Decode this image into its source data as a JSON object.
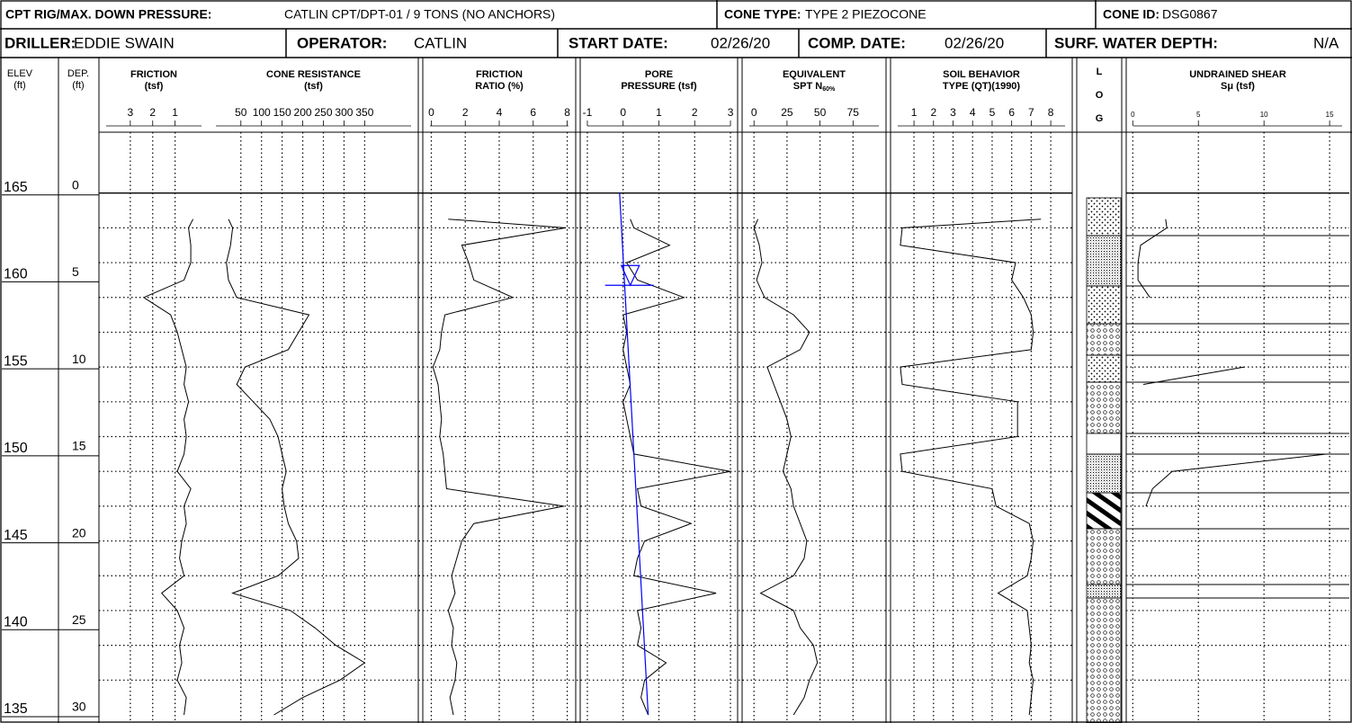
{
  "header": {
    "rig_label": "CPT RIG/MAX. DOWN PRESSURE:",
    "rig_value": "CATLIN CPT/DPT-01 / 9 TONS (NO ANCHORS)",
    "cone_type_label": "CONE TYPE:",
    "cone_type_value": "TYPE 2 PIEZOCONE",
    "cone_id_label": "CONE ID:",
    "cone_id_value": "DSG0867",
    "driller_label": "DRILLER:",
    "driller_value": "EDDIE SWAIN",
    "operator_label": "OPERATOR:",
    "operator_value": "CATLIN",
    "start_label": "START DATE:",
    "start_value": "02/26/20",
    "comp_label": "COMP. DATE:",
    "comp_value": "02/26/20",
    "water_label": "SURF. WATER DEPTH:",
    "water_value": "N/A"
  },
  "depth_axis": {
    "elev_title": "ELEV",
    "elev_unit": "(ft)",
    "depth_title": "DEP.",
    "depth_unit": "(ft)",
    "ylim": [
      -3.5,
      30
    ],
    "ticks": [
      0,
      5,
      10,
      15,
      20,
      25,
      30
    ],
    "elevations": [
      165,
      160,
      155,
      150,
      145,
      140,
      135
    ],
    "grid": [
      2,
      4,
      6,
      8,
      10,
      12,
      14,
      16,
      18,
      20,
      22,
      24,
      26,
      28
    ],
    "log_title": [
      "L",
      "O",
      "G"
    ]
  },
  "chart_data": [
    {
      "type": "line",
      "title": [
        "FRICTION",
        "(tsf)"
      ],
      "color": "#000000",
      "xlim": [
        4.4,
        -0.5
      ],
      "xticks": [
        3,
        2,
        1
      ],
      "grid": true,
      "depth": [
        1.5,
        2,
        3,
        4,
        5,
        6,
        7,
        8,
        9,
        10,
        11,
        12,
        13,
        14,
        15,
        16,
        17,
        18,
        19,
        20,
        21,
        22,
        23,
        24,
        25,
        26,
        27,
        28,
        29,
        30
      ],
      "values": [
        0.2,
        0.4,
        0.3,
        0.3,
        0.6,
        2.4,
        1.2,
        0.9,
        0.7,
        0.5,
        0.6,
        0.4,
        0.6,
        0.5,
        0.6,
        0.9,
        0.3,
        0.6,
        0.5,
        0.7,
        0.8,
        0.6,
        1.6,
        0.9,
        0.6,
        0.8,
        0.7,
        0.9,
        0.5,
        0.6
      ]
    },
    {
      "type": "line",
      "title": [
        "CONE RESISTANCE",
        "(tsf)"
      ],
      "color": "#000000",
      "xlim": [
        -28,
        480
      ],
      "xticks": [
        50,
        100,
        150,
        200,
        250,
        300,
        350
      ],
      "grid": true,
      "depth": [
        1.5,
        2,
        3,
        4,
        5,
        6,
        7,
        8,
        9,
        10,
        11,
        12,
        13,
        14,
        15,
        16,
        17,
        18,
        19,
        20,
        21,
        22,
        23,
        24,
        25,
        26,
        27,
        28,
        29,
        30
      ],
      "values": [
        20,
        30,
        25,
        15,
        20,
        40,
        215,
        190,
        165,
        60,
        40,
        80,
        120,
        140,
        150,
        160,
        150,
        155,
        165,
        185,
        190,
        140,
        30,
        170,
        230,
        280,
        350,
        290,
        200,
        130
      ]
    },
    {
      "type": "line",
      "title": [
        "FRICTION",
        "RATIO (%)"
      ],
      "color": "#000000",
      "xlim": [
        -0.5,
        8.5
      ],
      "xticks": [
        0,
        2,
        4,
        6,
        8
      ],
      "grid": true,
      "depth": [
        1.5,
        2,
        3,
        4,
        5,
        6,
        7,
        8,
        9,
        10,
        11,
        12,
        13,
        14,
        15,
        16,
        17,
        18,
        19,
        20,
        21,
        22,
        23,
        24,
        25,
        26,
        27,
        28,
        29,
        30
      ],
      "values": [
        1.0,
        7.9,
        1.8,
        2.2,
        2.5,
        4.8,
        0.8,
        0.6,
        0.5,
        0.1,
        0.4,
        0.5,
        0.6,
        0.5,
        0.7,
        0.8,
        0.9,
        7.8,
        2.5,
        1.8,
        1.5,
        1.2,
        1.4,
        1.0,
        1.3,
        1.2,
        1.5,
        1.4,
        1.1,
        1.3
      ]
    },
    {
      "type": "line",
      "title": [
        "PORE",
        "PRESSURE (tsf)"
      ],
      "color": "#000000",
      "xlim": [
        -1.2,
        3.2
      ],
      "xticks": [
        -1,
        0,
        1,
        2,
        3
      ],
      "grid": true,
      "depth": [
        1.5,
        2,
        3,
        4,
        5,
        6,
        7,
        8,
        9,
        10,
        11,
        12,
        13,
        14,
        15,
        16,
        17,
        18,
        19,
        20,
        21,
        22,
        23,
        24,
        25,
        26,
        27,
        28,
        29,
        30
      ],
      "values": [
        0.2,
        0.3,
        1.3,
        0.1,
        0.4,
        1.7,
        0.0,
        0.1,
        0.0,
        0.1,
        0.2,
        0.0,
        0.1,
        0.2,
        0.3,
        3.0,
        0.4,
        0.5,
        1.9,
        0.6,
        0.4,
        0.3,
        2.6,
        0.4,
        0.5,
        0.4,
        1.2,
        0.6,
        0.5,
        0.7
      ],
      "hydrostatic": {
        "depth": [
          0,
          30
        ],
        "values": [
          -0.1,
          0.7
        ],
        "color": "#0000ff"
      },
      "water_table_depth": 5.3
    },
    {
      "type": "line",
      "title": [
        "EQUIVALENT",
        "SPT N"
      ],
      "title_subscript": "60%",
      "color": "#000000",
      "xlim": [
        -9,
        100
      ],
      "xticks": [
        0,
        25,
        50,
        75
      ],
      "grid": true,
      "depth": [
        1.5,
        2,
        3,
        4,
        5,
        6,
        7,
        8,
        9,
        10,
        11,
        12,
        13,
        14,
        15,
        16,
        17,
        18,
        19,
        20,
        21,
        22,
        23,
        24,
        25,
        26,
        27,
        28,
        29,
        30
      ],
      "values": [
        3,
        0,
        4,
        6,
        2,
        8,
        30,
        42,
        35,
        10,
        15,
        20,
        25,
        28,
        25,
        22,
        28,
        30,
        35,
        40,
        38,
        30,
        5,
        30,
        35,
        45,
        48,
        42,
        38,
        30
      ]
    },
    {
      "type": "line",
      "title": [
        "SOIL BEHAVIOR",
        "TYPE (QT)(1990)"
      ],
      "color": "#000000",
      "xlim": [
        -0.2,
        9.1
      ],
      "xticks": [
        1,
        2,
        3,
        4,
        5,
        6,
        7,
        8
      ],
      "grid": true,
      "depth": [
        1.5,
        2,
        3,
        4,
        5,
        6,
        7,
        8,
        9,
        10,
        11,
        12,
        13,
        14,
        15,
        16,
        17,
        18,
        19,
        20,
        21,
        22,
        23,
        24,
        25,
        26,
        27,
        28,
        29,
        30
      ],
      "values": [
        7.5,
        0.4,
        0.3,
        6.2,
        6.0,
        6.6,
        7.0,
        7.1,
        7.0,
        0.3,
        0.4,
        6.3,
        6.3,
        6.3,
        0.3,
        0.4,
        5.0,
        5.2,
        6.9,
        7.1,
        7.0,
        6.8,
        5.3,
        6.8,
        6.9,
        7.0,
        6.9,
        7.1,
        7.0,
        6.9
      ]
    },
    {
      "type": "line",
      "title": [
        "UNDRAINED SHEAR",
        "Sμ (tsf)"
      ],
      "color": "#000000",
      "xlim": [
        -0.5,
        16.5
      ],
      "xticks": [
        0,
        5,
        10,
        15
      ],
      "grid": true,
      "depth": [
        1.5,
        2,
        3,
        4,
        5,
        6,
        7,
        8,
        9,
        10,
        11,
        12,
        13,
        14,
        15,
        16,
        17,
        18,
        19,
        20,
        21,
        22,
        23,
        24,
        25,
        26,
        27,
        28,
        29,
        30
      ],
      "values": [
        2.5,
        2.6,
        0.6,
        0.4,
        0.4,
        1.3,
        null,
        null,
        null,
        8.5,
        0.8,
        null,
        null,
        null,
        14.8,
        3.0,
        1.5,
        1.0,
        null,
        null,
        null,
        null,
        5.0,
        null,
        null,
        null,
        null,
        null,
        null,
        null
      ]
    }
  ]
}
